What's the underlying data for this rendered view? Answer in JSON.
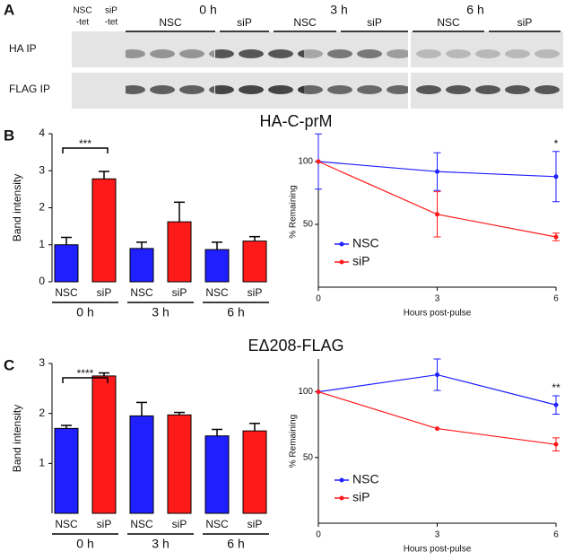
{
  "panel_labels": [
    "A",
    "B",
    "C"
  ],
  "panel_titles": [
    "HA-C-prM",
    "EΔ208-FLAG"
  ],
  "blot": {
    "controls": [
      [
        "NSC",
        "-tet"
      ],
      [
        "siP",
        "-tet"
      ]
    ],
    "times": [
      "0 h",
      "3 h",
      "6 h"
    ],
    "groups": [
      "NSC",
      "siP",
      "NSC",
      "siP",
      "NSC",
      "siP"
    ],
    "rows": [
      "HA IP",
      "FLAG IP"
    ]
  },
  "chart_data": [
    {
      "type": "bar",
      "y_label": "Band intensity",
      "categories": [
        "NSC",
        "siP",
        "NSC",
        "siP",
        "NSC",
        "siP"
      ],
      "groups": [
        "0 h",
        "3 h",
        "6 h"
      ],
      "values": [
        1.0,
        2.78,
        0.9,
        1.62,
        0.87,
        1.1
      ],
      "errors": [
        0.2,
        0.2,
        0.17,
        0.53,
        0.2,
        0.12
      ],
      "colors": [
        "#1f1fff",
        "#ff1a1a",
        "#1f1fff",
        "#ff1a1a",
        "#1f1fff",
        "#ff1a1a"
      ],
      "annotation": "***",
      "ylim": [
        0,
        4
      ],
      "yticks": [
        0,
        1,
        2,
        3,
        4
      ]
    },
    {
      "type": "line",
      "x_label": "Hours post-pulse",
      "y_label": "% Remaining",
      "x": [
        0,
        3,
        6
      ],
      "series": [
        {
          "name": "NSC",
          "color": "#1f1fff",
          "values": [
            100,
            92,
            88
          ],
          "errors": [
            22,
            15,
            20
          ]
        },
        {
          "name": "siP",
          "color": "#ff1a1a",
          "values": [
            100,
            58,
            40
          ],
          "errors": [
            0,
            18,
            3
          ]
        }
      ],
      "annotation": "*",
      "xlim": [
        0,
        6
      ],
      "xticks": [
        0,
        3,
        6
      ],
      "ylim": [
        0,
        120
      ],
      "yticks": [
        50,
        100
      ],
      "legend": "lower-left"
    },
    {
      "type": "bar",
      "y_label": "Band intensity",
      "categories": [
        "NSC",
        "siP",
        "NSC",
        "siP",
        "NSC",
        "siP"
      ],
      "groups": [
        "0 h",
        "3 h",
        "6 h"
      ],
      "values": [
        1.7,
        2.75,
        1.95,
        1.97,
        1.55,
        1.65
      ],
      "errors": [
        0.06,
        0.06,
        0.27,
        0.05,
        0.13,
        0.15
      ],
      "colors": [
        "#1f1fff",
        "#ff1a1a",
        "#1f1fff",
        "#ff1a1a",
        "#1f1fff",
        "#ff1a1a"
      ],
      "annotation": "****",
      "ylim": [
        0,
        3
      ],
      "yticks": [
        1,
        2,
        3
      ]
    },
    {
      "type": "line",
      "x_label": "Hours post-pulse",
      "y_label": "% Remaining",
      "x": [
        0,
        3,
        6
      ],
      "series": [
        {
          "name": "NSC",
          "color": "#1f1fff",
          "values": [
            100,
            113,
            90
          ],
          "errors": [
            0,
            12,
            7
          ]
        },
        {
          "name": "siP",
          "color": "#ff1a1a",
          "values": [
            100,
            72,
            60
          ],
          "errors": [
            0,
            0,
            5
          ]
        }
      ],
      "annotation": "**",
      "xlim": [
        0,
        6
      ],
      "xticks": [
        0,
        3,
        6
      ],
      "ylim": [
        0,
        125
      ],
      "yticks": [
        50,
        100
      ],
      "legend": "lower-left"
    }
  ]
}
